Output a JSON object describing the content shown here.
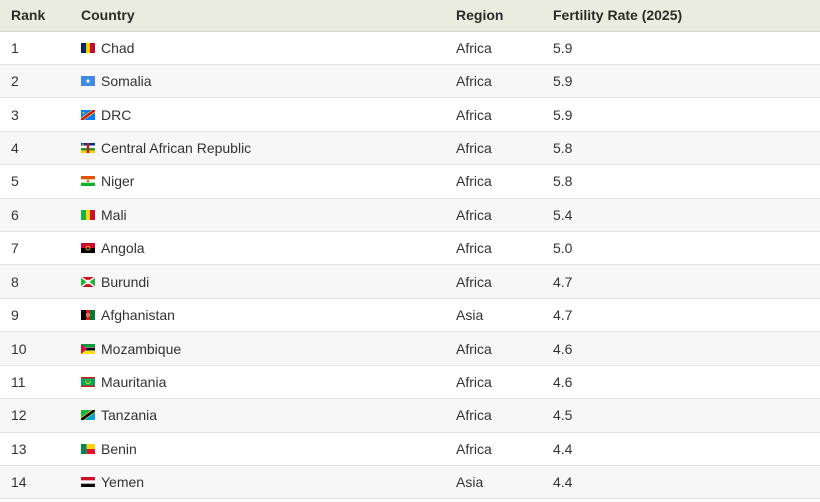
{
  "table": {
    "headers": {
      "rank": "Rank",
      "country": "Country",
      "region": "Region",
      "rate": "Fertility Rate (2025)"
    },
    "rows": [
      {
        "rank": "1",
        "country": "Chad",
        "region": "Africa",
        "rate": "5.9",
        "flag_icon": "chad-flag-icon"
      },
      {
        "rank": "2",
        "country": "Somalia",
        "region": "Africa",
        "rate": "5.9",
        "flag_icon": "somalia-flag-icon"
      },
      {
        "rank": "3",
        "country": "DRC",
        "region": "Africa",
        "rate": "5.9",
        "flag_icon": "drc-flag-icon"
      },
      {
        "rank": "4",
        "country": "Central African Republic",
        "region": "Africa",
        "rate": "5.8",
        "flag_icon": "central-african-republic-flag-icon"
      },
      {
        "rank": "5",
        "country": "Niger",
        "region": "Africa",
        "rate": "5.8",
        "flag_icon": "niger-flag-icon"
      },
      {
        "rank": "6",
        "country": "Mali",
        "region": "Africa",
        "rate": "5.4",
        "flag_icon": "mali-flag-icon"
      },
      {
        "rank": "7",
        "country": "Angola",
        "region": "Africa",
        "rate": "5.0",
        "flag_icon": "angola-flag-icon"
      },
      {
        "rank": "8",
        "country": "Burundi",
        "region": "Africa",
        "rate": "4.7",
        "flag_icon": "burundi-flag-icon"
      },
      {
        "rank": "9",
        "country": "Afghanistan",
        "region": "Asia",
        "rate": "4.7",
        "flag_icon": "afghanistan-flag-icon"
      },
      {
        "rank": "10",
        "country": "Mozambique",
        "region": "Africa",
        "rate": "4.6",
        "flag_icon": "mozambique-flag-icon"
      },
      {
        "rank": "11",
        "country": "Mauritania",
        "region": "Africa",
        "rate": "4.6",
        "flag_icon": "mauritania-flag-icon"
      },
      {
        "rank": "12",
        "country": "Tanzania",
        "region": "Africa",
        "rate": "4.5",
        "flag_icon": "tanzania-flag-icon"
      },
      {
        "rank": "13",
        "country": "Benin",
        "region": "Africa",
        "rate": "4.4",
        "flag_icon": "benin-flag-icon"
      },
      {
        "rank": "14",
        "country": "Yemen",
        "region": "Asia",
        "rate": "4.4",
        "flag_icon": "yemen-flag-icon"
      }
    ]
  },
  "colors": {
    "header_bg": "#e9ecde",
    "row_alt_bg": "#f7f7f7",
    "border": "#e2e2e2"
  }
}
